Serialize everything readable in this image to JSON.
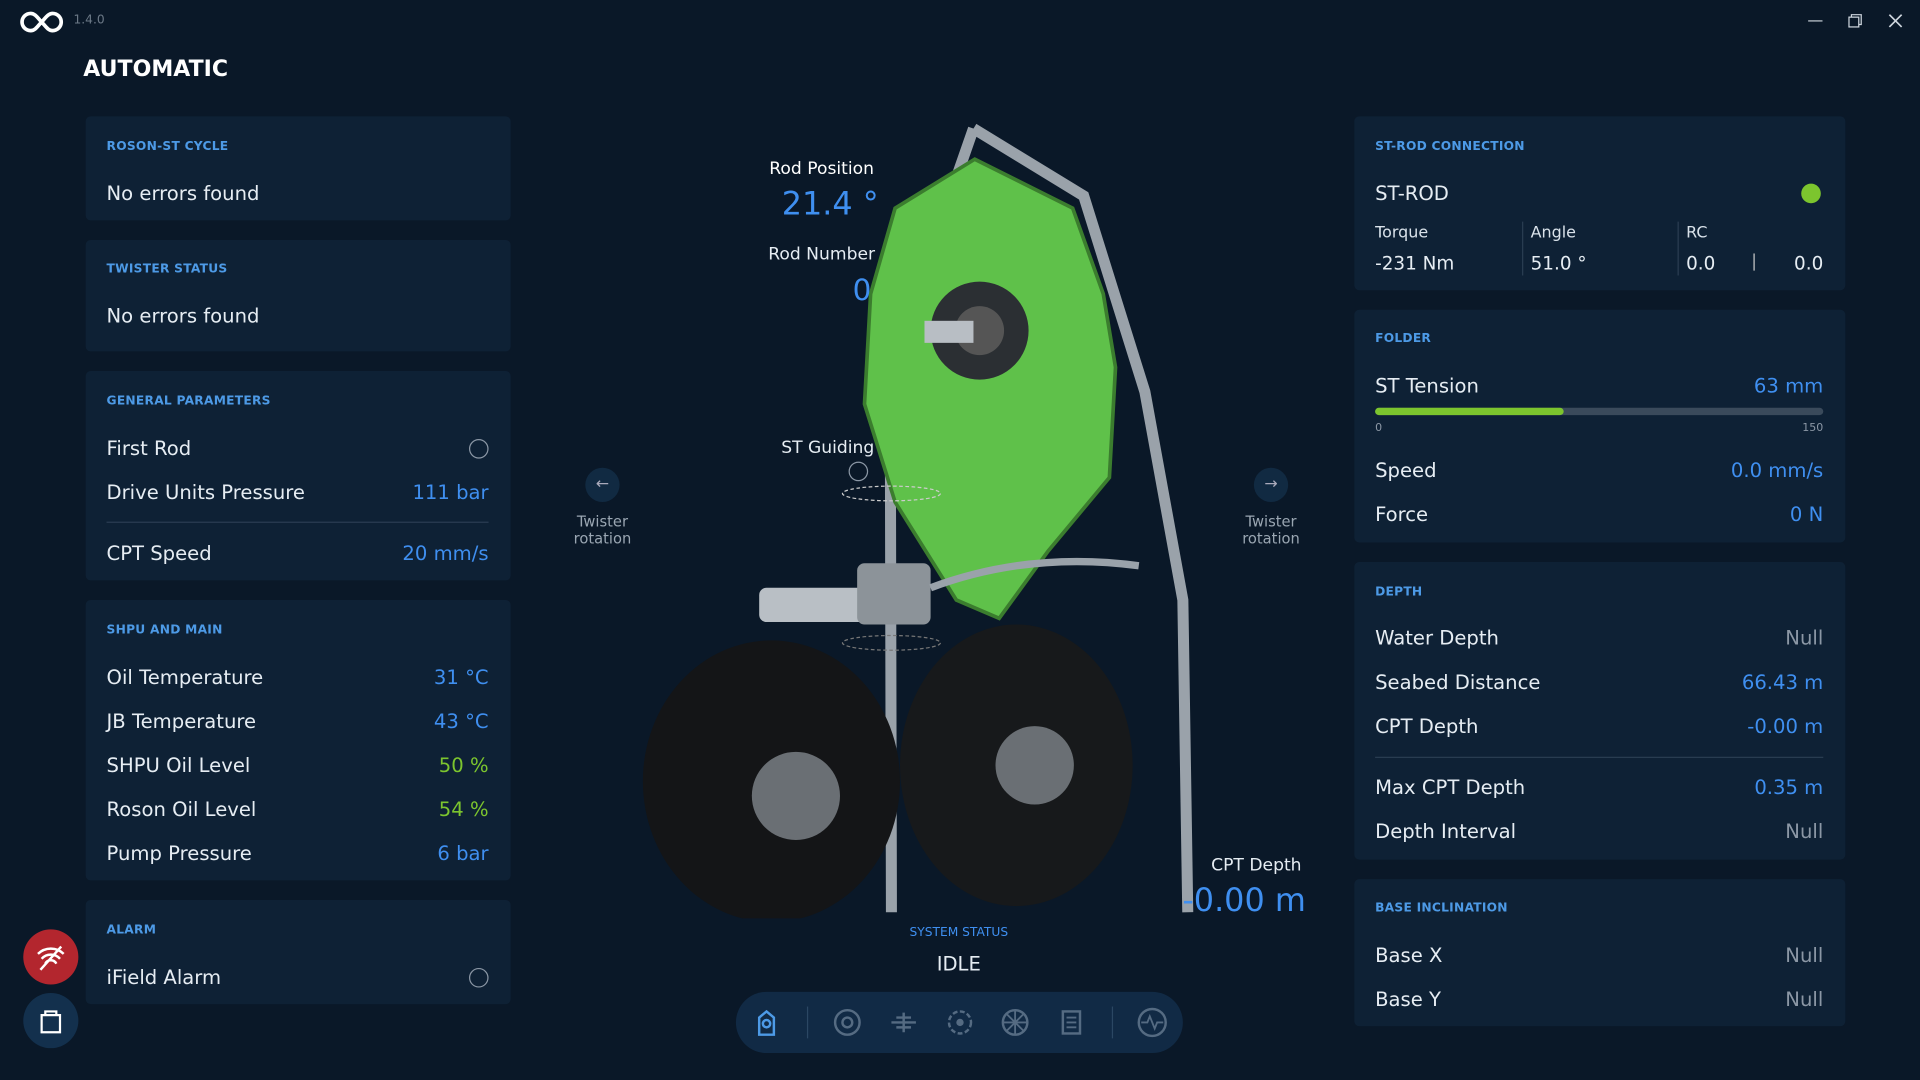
{
  "app": {
    "version": "1.4.0"
  },
  "header": {
    "title": "AUTOMATIC"
  },
  "roson_cycle": {
    "title": "ROSON-ST CYCLE",
    "status": "No errors found"
  },
  "twister_status": {
    "title": "TWISTER STATUS",
    "status": "No errors found"
  },
  "general_parameters": {
    "title": "GENERAL PARAMETERS",
    "rows": [
      {
        "label": "First Rod"
      },
      {
        "label": "Drive Units Pressure",
        "value": "111 bar"
      },
      {
        "label": "CPT Speed",
        "value": "20 mm/s"
      }
    ]
  },
  "shpu_and_main": {
    "title": "SHPU AND MAIN",
    "rows": [
      {
        "label": "Oil Temperature",
        "value": "31 °C"
      },
      {
        "label": "JB Temperature",
        "value": "43 °C"
      },
      {
        "label": "SHPU Oil Level",
        "value": "50 %"
      },
      {
        "label": "Roson Oil Level",
        "value": "54 %"
      },
      {
        "label": "Pump Pressure",
        "value": "6 bar"
      }
    ]
  },
  "alarm": {
    "title": "ALARM",
    "rows": [
      {
        "label": "iField Alarm"
      }
    ]
  },
  "center": {
    "rod_position": {
      "label": "Rod Position",
      "value": "21.4 °"
    },
    "rod_number": {
      "label": "Rod Number",
      "value": "0"
    },
    "st_guiding": {
      "label": "ST Guiding"
    },
    "twister_left": {
      "label": "Twister rotation"
    },
    "twister_right": {
      "label": "Twister rotation"
    },
    "cpt_depth": {
      "label": "CPT Depth",
      "value": "-0.00 m"
    },
    "system_status": {
      "label": "SYSTEM STATUS",
      "value": "IDLE"
    }
  },
  "st_rod_connection": {
    "title": "ST-ROD CONNECTION",
    "name": "ST-ROD",
    "torque": {
      "label": "Torque",
      "value": "-231 Nm"
    },
    "angle": {
      "label": "Angle",
      "value": "51.0 °"
    },
    "rc": {
      "label": "RC",
      "values": [
        "0.0",
        "0.0"
      ]
    }
  },
  "folder": {
    "title": "FOLDER",
    "st_tension": {
      "label": "ST Tension",
      "value": 63,
      "value_label": "63 mm",
      "scale": [
        0,
        150
      ]
    },
    "rows": [
      {
        "label": "Speed",
        "value": "0.0 mm/s"
      },
      {
        "label": "Force",
        "value": "0 N"
      }
    ]
  },
  "depth": {
    "title": "DEPTH",
    "rows": [
      {
        "label": "Water Depth",
        "value": "Null"
      },
      {
        "label": "Seabed Distance",
        "value": "66.43 m"
      },
      {
        "label": "CPT Depth",
        "value": "-0.00 m"
      },
      {
        "label": "Max CPT Depth",
        "value": "0.35 m"
      },
      {
        "label": "Depth Interval",
        "value": "Null"
      }
    ]
  },
  "base_inclination": {
    "title": "BASE INCLINATION",
    "rows": [
      {
        "label": "Base X",
        "value": "Null"
      },
      {
        "label": "Base Y",
        "value": "Null"
      }
    ]
  }
}
